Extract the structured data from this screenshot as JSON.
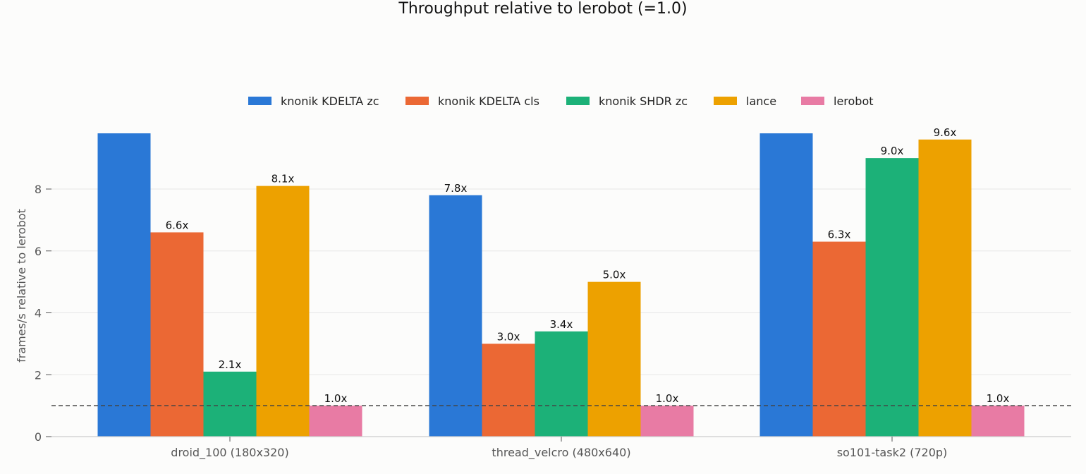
{
  "chart_data": {
    "type": "bar",
    "title": "Throughput relative to lerobot (=1.0)",
    "xlabel": "",
    "ylabel": "frames/s relative to lerobot",
    "categories": [
      "droid_100 (180x320)",
      "thread_velcro (480x640)",
      "so101-task2 (720p)"
    ],
    "y_ticks": [
      0,
      2,
      4,
      6,
      8
    ],
    "ylim": [
      0,
      9.8
    ],
    "grid": "horizontal",
    "legend_position": "top-center",
    "reference_line": {
      "value": 1.0,
      "style": "dashed"
    },
    "series": [
      {
        "name": "knonik KDELTA zc",
        "color": "#2a78d6",
        "values": [
          9.8,
          7.8,
          9.8
        ],
        "labels": [
          "",
          "7.8x",
          ""
        ]
      },
      {
        "name": "knonik KDELTA cls",
        "color": "#eb6834",
        "values": [
          6.6,
          3.0,
          6.3
        ],
        "labels": [
          "6.6x",
          "3.0x",
          "6.3x"
        ]
      },
      {
        "name": "knonik SHDR zc",
        "color": "#1cb178",
        "values": [
          2.1,
          3.4,
          9.0
        ],
        "labels": [
          "2.1x",
          "3.4x",
          "9.0x"
        ]
      },
      {
        "name": "lance",
        "color": "#eda100",
        "values": [
          8.1,
          5.0,
          9.6
        ],
        "labels": [
          "8.1x",
          "5.0x",
          "9.6x"
        ]
      },
      {
        "name": "lerobot",
        "color": "#e87ba4",
        "values": [
          1.0,
          1.0,
          1.0
        ],
        "labels": [
          "1.0x",
          "1.0x",
          "1.0x"
        ]
      }
    ]
  }
}
